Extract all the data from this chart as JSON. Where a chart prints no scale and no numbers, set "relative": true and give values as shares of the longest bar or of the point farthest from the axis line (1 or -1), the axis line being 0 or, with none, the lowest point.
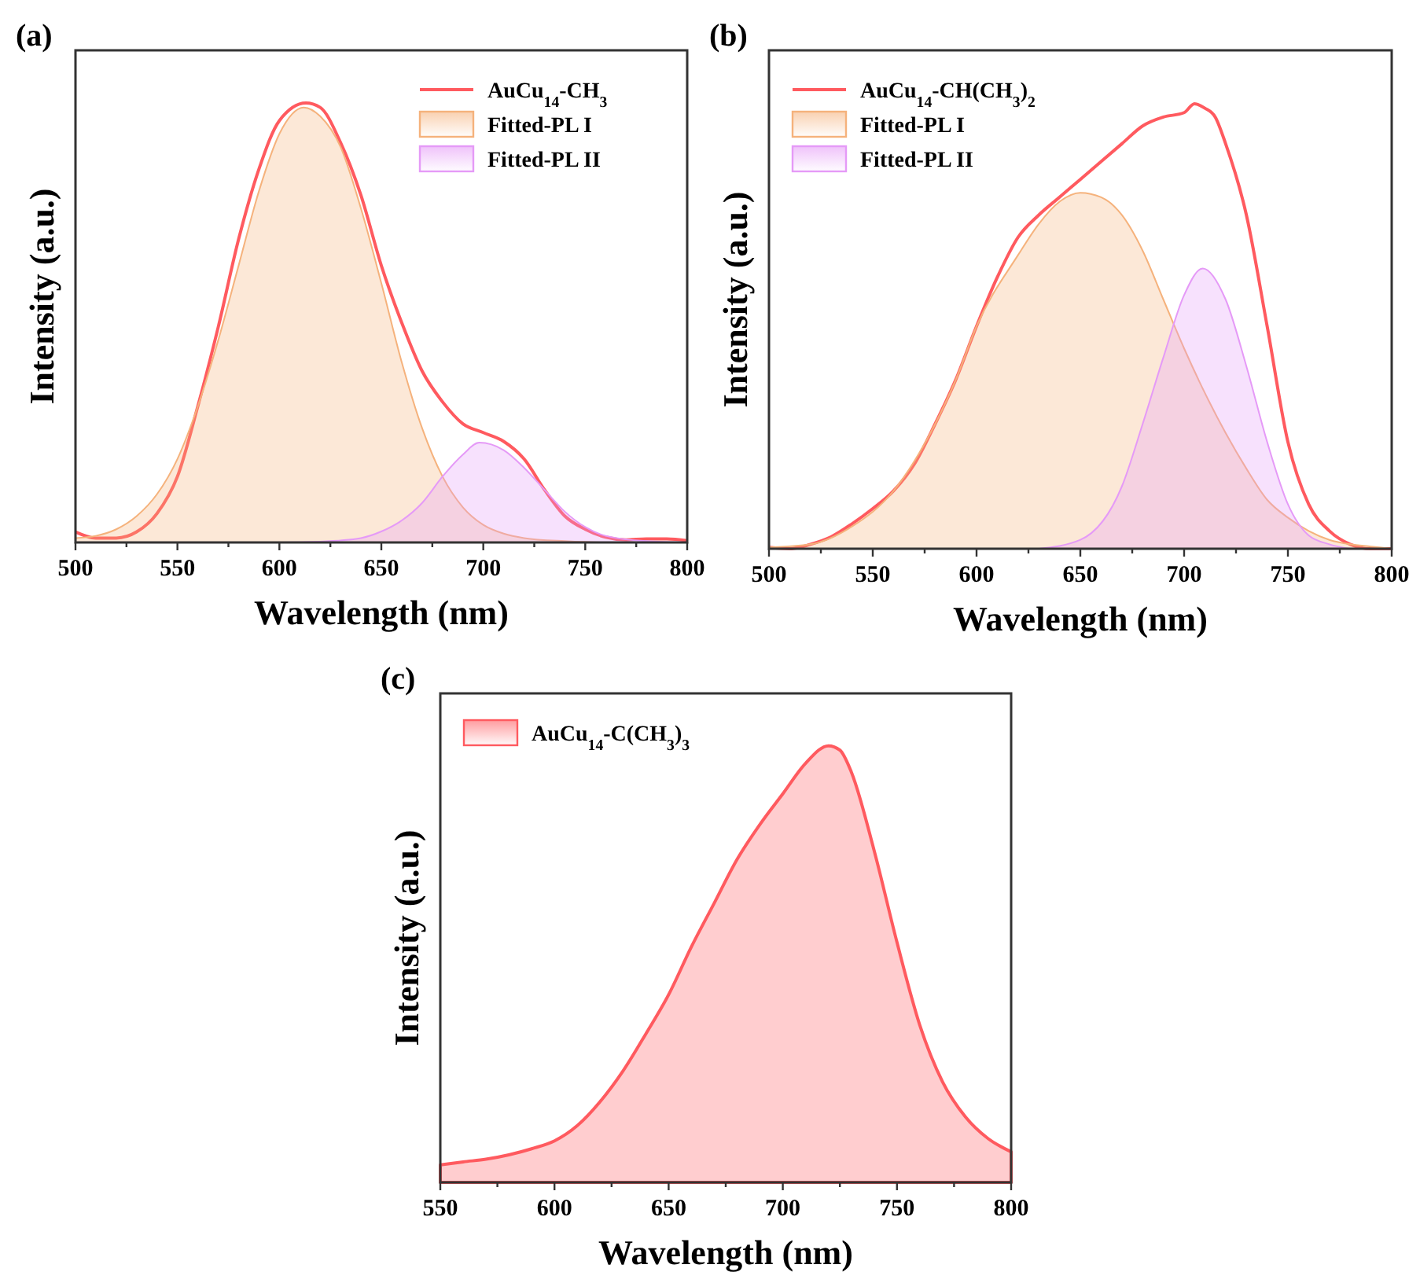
{
  "chart_data": [
    {
      "type": "line",
      "title": "(a)",
      "xlabel": "Wavelength (nm)",
      "ylabel": "Intensity (a.u.)",
      "relative": true,
      "legend": "top right",
      "xlim": [
        500,
        800
      ],
      "xticks": [
        500,
        {
          "value": 525,
          "label": null
        },
        550,
        {
          "value": 575,
          "label": null
        },
        600,
        {
          "value": 625,
          "label": null
        },
        650,
        {
          "value": 675,
          "label": null
        },
        700,
        {
          "value": 725,
          "label": null
        },
        750,
        {
          "value": 775,
          "label": null
        },
        800
      ],
      "series": [
        {
          "name": "AuCu$_{14}$-CH$_{3}$",
          "color": "#ff5a5f",
          "x": [
            500,
            510,
            520,
            530,
            540,
            550,
            560,
            570,
            580,
            590,
            600,
            613,
            620,
            630,
            640,
            650,
            660,
            670,
            680,
            690,
            700,
            710,
            720,
            730,
            740,
            750,
            760,
            770,
            780,
            790,
            800
          ],
          "values": [
            0.024,
            0.01,
            0.01,
            0.024,
            0.066,
            0.15,
            0.31,
            0.49,
            0.69,
            0.85,
            0.96,
            1,
            0.99,
            0.91,
            0.79,
            0.63,
            0.5,
            0.39,
            0.32,
            0.27,
            0.25,
            0.23,
            0.19,
            0.12,
            0.06,
            0.03,
            0.012,
            0.006,
            0.008,
            0.008,
            0.004
          ]
        },
        {
          "name": "Fitted-PL I",
          "type": "area",
          "color": "#f5b27c",
          "x": [
            500,
            510,
            520,
            530,
            540,
            550,
            560,
            570,
            580,
            590,
            600,
            612,
            620,
            630,
            640,
            650,
            660,
            670,
            680,
            690,
            700,
            710,
            720,
            740,
            760,
            800
          ],
          "values": [
            0.01,
            0.015,
            0.03,
            0.06,
            0.11,
            0.19,
            0.31,
            0.46,
            0.63,
            0.8,
            0.93,
            0.99,
            0.97,
            0.9,
            0.76,
            0.59,
            0.41,
            0.26,
            0.15,
            0.08,
            0.04,
            0.02,
            0.01,
            0.003,
            0,
            0
          ]
        },
        {
          "name": "Fitted-PL II",
          "type": "area",
          "color": "#e59af7",
          "x": [
            500,
            600,
            620,
            640,
            650,
            660,
            670,
            680,
            690,
            698,
            710,
            720,
            730,
            740,
            750,
            760,
            780,
            800
          ],
          "values": [
            0,
            0,
            0.002,
            0.01,
            0.025,
            0.05,
            0.09,
            0.15,
            0.2,
            0.227,
            0.21,
            0.17,
            0.12,
            0.07,
            0.035,
            0.015,
            0.003,
            0
          ]
        }
      ]
    },
    {
      "type": "line",
      "title": "(b)",
      "xlabel": "Wavelength (nm)",
      "ylabel": "Intensity (a.u.)",
      "relative": true,
      "legend": "top left",
      "xlim": [
        500,
        800
      ],
      "xticks": [
        500,
        {
          "value": 525,
          "label": null
        },
        550,
        {
          "value": 575,
          "label": null
        },
        600,
        {
          "value": 625,
          "label": null
        },
        650,
        {
          "value": 675,
          "label": null
        },
        700,
        {
          "value": 725,
          "label": null
        },
        750,
        {
          "value": 775,
          "label": null
        },
        800
      ],
      "series": [
        {
          "name": "AuCu$_{14}$-CH(CH$_{3}$)$_{2}$",
          "color": "#ff5a5f",
          "x": [
            500,
            510,
            520,
            530,
            540,
            550,
            560,
            570,
            580,
            590,
            600,
            610,
            620,
            630,
            640,
            650,
            660,
            670,
            680,
            690,
            700,
            705,
            710,
            715,
            720,
            730,
            740,
            750,
            760,
            770,
            780,
            790,
            800
          ],
          "values": [
            0.003,
            0,
            0.01,
            0.027,
            0.056,
            0.09,
            0.13,
            0.19,
            0.28,
            0.38,
            0.5,
            0.61,
            0.7,
            0.75,
            0.79,
            0.83,
            0.87,
            0.91,
            0.95,
            0.97,
            0.98,
            1,
            0.99,
            0.97,
            0.91,
            0.75,
            0.5,
            0.24,
            0.1,
            0.04,
            0.01,
            0,
            0
          ]
        },
        {
          "name": "Fitted-PL I",
          "type": "area",
          "color": "#f5b27c",
          "x": [
            500,
            520,
            540,
            560,
            580,
            590,
            600,
            620,
            630,
            640,
            650,
            660,
            670,
            680,
            690,
            700,
            710,
            720,
            730,
            740,
            750,
            760,
            770,
            780,
            790,
            800
          ],
          "values": [
            0.003,
            0.01,
            0.05,
            0.13,
            0.28,
            0.38,
            0.5,
            0.66,
            0.73,
            0.78,
            0.8,
            0.79,
            0.75,
            0.67,
            0.56,
            0.45,
            0.35,
            0.26,
            0.18,
            0.11,
            0.07,
            0.04,
            0.02,
            0.01,
            0.005,
            0
          ]
        },
        {
          "name": "Fitted-PL II",
          "type": "area",
          "color": "#e59af7",
          "x": [
            630,
            650,
            670,
            680,
            690,
            700,
            709,
            720,
            730,
            740,
            750,
            760,
            770,
            780
          ],
          "values": [
            0,
            0.02,
            0.14,
            0.28,
            0.43,
            0.57,
            0.63,
            0.56,
            0.41,
            0.24,
            0.1,
            0.03,
            0.01,
            0
          ]
        }
      ]
    },
    {
      "type": "area",
      "title": "(c)",
      "xlabel": "Wavelength (nm)",
      "ylabel": "Intensity (a.u.)",
      "relative": true,
      "legend": "top left",
      "xlim": [
        550,
        800
      ],
      "xticks": [
        550,
        {
          "value": 575,
          "label": null
        },
        600,
        {
          "value": 625,
          "label": null
        },
        650,
        {
          "value": 675,
          "label": null
        },
        700,
        {
          "value": 725,
          "label": null
        },
        750,
        {
          "value": 775,
          "label": null
        },
        800
      ],
      "series": [
        {
          "name": "AuCu$_{14}$-C(CH$_{3}$)$_{3}$",
          "color": "#ff5a5f",
          "x": [
            550,
            560,
            570,
            580,
            590,
            600,
            610,
            620,
            630,
            640,
            650,
            660,
            670,
            680,
            690,
            700,
            710,
            720,
            725,
            730,
            740,
            750,
            760,
            770,
            780,
            790,
            800
          ],
          "values": [
            0.04,
            0.047,
            0.053,
            0.063,
            0.077,
            0.095,
            0.13,
            0.185,
            0.255,
            0.34,
            0.43,
            0.54,
            0.64,
            0.74,
            0.82,
            0.89,
            0.96,
            1,
            0.99,
            0.94,
            0.76,
            0.55,
            0.36,
            0.23,
            0.15,
            0.1,
            0.07
          ]
        }
      ]
    }
  ]
}
